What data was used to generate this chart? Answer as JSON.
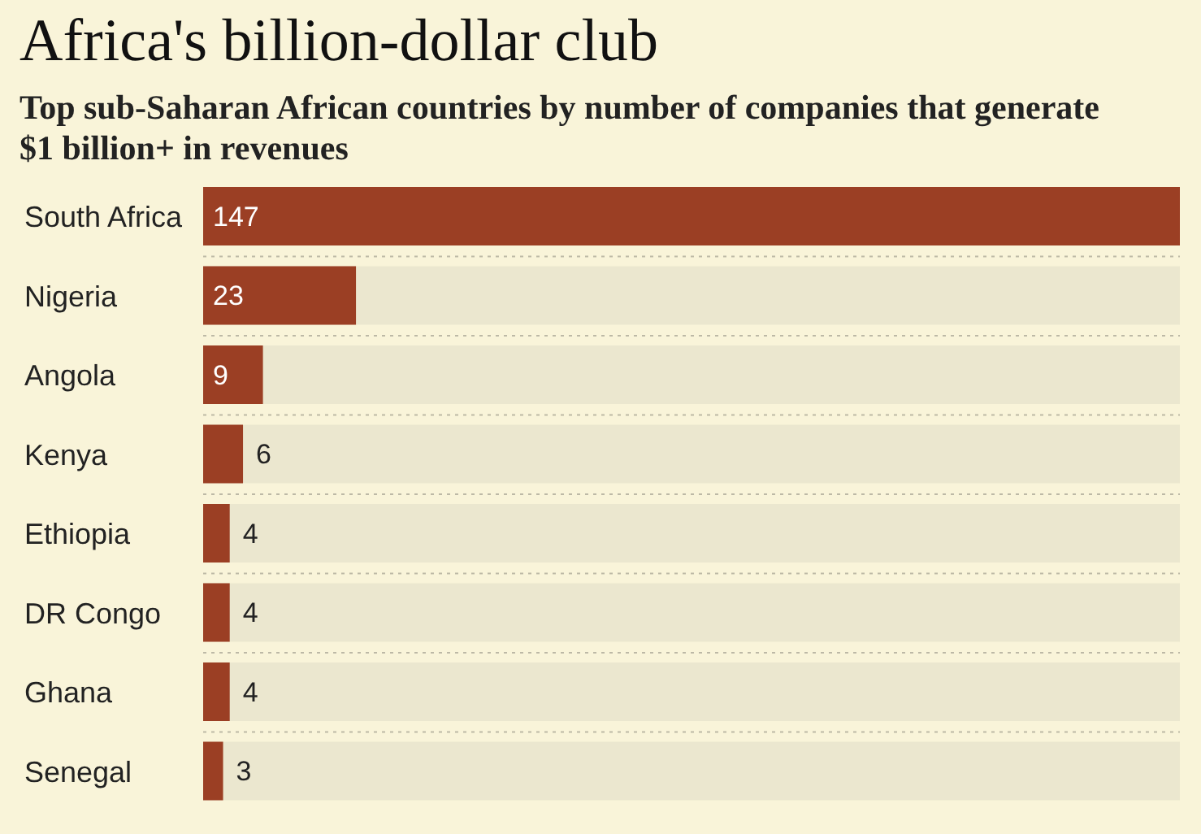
{
  "chart_data": {
    "type": "bar",
    "orientation": "horizontal",
    "title": "Africa's billion-dollar club",
    "subtitle": "Top sub-Saharan African countries by number of companies that generate $1 billion+ in revenues",
    "categories": [
      "South Africa",
      "Nigeria",
      "Angola",
      "Kenya",
      "Ethiopia",
      "DR Congo",
      "Ghana",
      "Senegal"
    ],
    "values": [
      147,
      23,
      9,
      6,
      4,
      4,
      4,
      3
    ],
    "color": "#9b3f24",
    "data_labels": true,
    "tick_labels": "y",
    "grid": "y"
  }
}
